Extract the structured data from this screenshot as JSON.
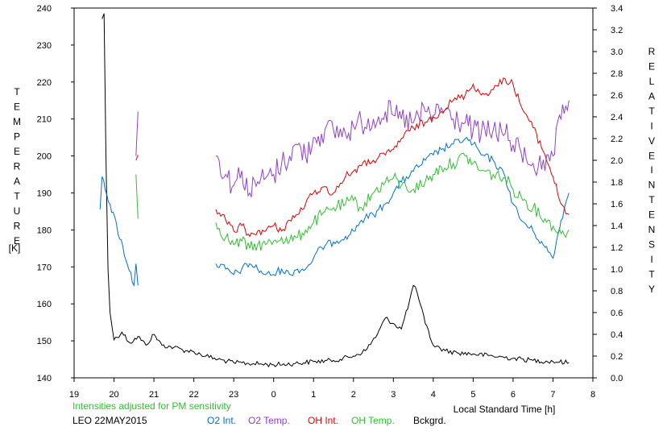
{
  "chart_data": {
    "type": "line",
    "left_axis": {
      "label_letters": [
        "T",
        "E",
        "M",
        "P",
        "E",
        "R",
        "A",
        "T",
        "U",
        "R",
        "E"
      ],
      "unit": "[K]",
      "range": [
        140,
        240
      ],
      "ticks": [
        "140",
        "150",
        "160",
        "170",
        "180",
        "190",
        "200",
        "210",
        "220",
        "230",
        "240"
      ]
    },
    "right_axis": {
      "label_word1": [
        "R",
        "E",
        "L",
        "A",
        "T",
        "I",
        "V",
        "E"
      ],
      "label_word2": [
        "I",
        "N",
        "T",
        "E",
        "N",
        "S",
        "I",
        "T",
        "Y"
      ],
      "range": [
        0.0,
        3.4
      ],
      "ticks": [
        "0.0",
        "0.2",
        "0.4",
        "0.6",
        "0.8",
        "1.0",
        "1.2",
        "1.4",
        "1.6",
        "1.8",
        "2.0",
        "2.2",
        "2.4",
        "2.6",
        "2.8",
        "3.0",
        "3.2",
        "3.4"
      ]
    },
    "x_axis": {
      "label": "Local Standard Time [h]",
      "range_hours_since_19": [
        0,
        13
      ],
      "ticks": [
        "19",
        "20",
        "21",
        "22",
        "23",
        "0",
        "1",
        "2",
        "3",
        "4",
        "5",
        "6",
        "7",
        "8"
      ]
    },
    "note": "Intensities adjusted for PM sensitivity",
    "station_date": "LEO 22MAY2015",
    "grid": false,
    "legend_placement": "bottom",
    "series": [
      {
        "name": "O2 Int.",
        "color": "#0070d0",
        "axis": "right",
        "x": [
          19.65,
          19.7,
          20.5,
          20.55,
          20.6,
          22.55,
          22.8,
          23.0,
          23.2,
          23.4,
          23.6,
          23.8,
          0.0,
          0.2,
          0.4,
          0.6,
          0.8,
          1.0,
          1.2,
          1.5,
          1.8,
          2.0,
          2.2,
          2.5,
          2.8,
          3.0,
          3.2,
          3.5,
          3.8,
          4.0,
          4.2,
          4.5,
          4.8,
          5.0,
          5.2,
          5.5,
          5.8,
          6.0,
          6.2,
          6.5,
          6.8,
          7.0,
          7.2,
          7.4
        ],
        "y": [
          1.55,
          1.85,
          0.85,
          1.05,
          0.85,
          1.05,
          1.0,
          0.95,
          1.0,
          1.05,
          1.0,
          0.95,
          0.95,
          1.0,
          0.95,
          1.0,
          1.0,
          1.1,
          1.2,
          1.25,
          1.3,
          1.35,
          1.45,
          1.5,
          1.6,
          1.7,
          1.8,
          1.9,
          2.0,
          2.05,
          2.1,
          2.15,
          2.2,
          2.15,
          2.05,
          2.0,
          1.85,
          1.6,
          1.45,
          1.35,
          1.2,
          1.1,
          1.45,
          1.7
        ]
      },
      {
        "name": "O2 Temp.",
        "color": "#9040d0",
        "axis": "left",
        "x": [
          20.55,
          20.6,
          22.55,
          22.8,
          23.0,
          23.2,
          23.4,
          23.6,
          23.8,
          0.0,
          0.2,
          0.4,
          0.6,
          0.8,
          1.0,
          1.2,
          1.5,
          1.8,
          2.0,
          2.2,
          2.5,
          2.8,
          3.0,
          3.2,
          3.5,
          3.8,
          4.0,
          4.2,
          4.5,
          4.8,
          5.0,
          5.2,
          5.5,
          5.8,
          6.0,
          6.2,
          6.5,
          6.8,
          7.0,
          7.2,
          7.4
        ],
        "y": [
          200,
          212,
          200,
          195,
          192,
          196,
          190,
          193,
          194,
          195,
          198,
          200,
          203,
          200,
          205,
          206,
          207,
          206,
          208,
          209,
          210,
          212,
          211,
          210,
          209,
          212,
          211,
          213,
          210,
          209,
          207,
          206,
          207,
          206,
          203,
          201,
          198,
          196,
          200,
          210,
          215
        ]
      },
      {
        "name": "OH Int.",
        "color": "#e00000",
        "axis": "right",
        "x": [
          20.55,
          20.6,
          22.55,
          22.8,
          23.0,
          23.2,
          23.4,
          23.6,
          23.8,
          0.0,
          0.2,
          0.4,
          0.6,
          0.8,
          1.0,
          1.2,
          1.5,
          1.8,
          2.0,
          2.2,
          2.5,
          2.8,
          3.0,
          3.2,
          3.5,
          3.8,
          4.0,
          4.2,
          4.5,
          4.8,
          5.0,
          5.2,
          5.5,
          5.8,
          6.0,
          6.2,
          6.5,
          6.8,
          7.0,
          7.2,
          7.4
        ],
        "y": [
          2.0,
          2.05,
          1.55,
          1.45,
          1.35,
          1.4,
          1.3,
          1.35,
          1.35,
          1.4,
          1.35,
          1.45,
          1.5,
          1.6,
          1.7,
          1.75,
          1.7,
          1.85,
          1.9,
          1.95,
          2.0,
          2.05,
          2.1,
          2.2,
          2.3,
          2.35,
          2.4,
          2.45,
          2.55,
          2.6,
          2.7,
          2.6,
          2.65,
          2.75,
          2.7,
          2.5,
          2.3,
          2.05,
          1.85,
          1.6,
          1.5
        ]
      },
      {
        "name": "OH Temp.",
        "color": "#30c030",
        "axis": "left",
        "x": [
          20.55,
          20.6,
          22.55,
          22.8,
          23.0,
          23.2,
          23.4,
          23.6,
          23.8,
          0.0,
          0.2,
          0.4,
          0.6,
          0.8,
          1.0,
          1.2,
          1.5,
          1.8,
          2.0,
          2.2,
          2.5,
          2.8,
          3.0,
          3.2,
          3.5,
          3.8,
          4.0,
          4.2,
          4.5,
          4.8,
          5.0,
          5.2,
          5.5,
          5.8,
          6.0,
          6.2,
          6.5,
          6.8,
          7.0,
          7.2,
          7.4
        ],
        "y": [
          195,
          183,
          182,
          178,
          176,
          177,
          175,
          176,
          176,
          177,
          178,
          177,
          178,
          180,
          182,
          184,
          186,
          187,
          188,
          186,
          190,
          193,
          194,
          192,
          191,
          193,
          195,
          197,
          198,
          200,
          198,
          196,
          195,
          194,
          191,
          189,
          186,
          183,
          181,
          179,
          180
        ]
      },
      {
        "name": "Bckgrd.",
        "color": "#000000",
        "axis": "right",
        "x": [
          19.7,
          19.75,
          19.8,
          19.85,
          19.9,
          20.0,
          20.2,
          20.4,
          20.6,
          20.8,
          21.0,
          21.2,
          21.5,
          21.8,
          22.0,
          22.3,
          22.6,
          23.0,
          23.5,
          0.0,
          0.5,
          1.0,
          1.5,
          2.0,
          2.3,
          2.6,
          2.8,
          3.0,
          3.2,
          3.4,
          3.5,
          3.6,
          3.8,
          4.0,
          4.3,
          4.6,
          5.0,
          5.5,
          6.0,
          6.5,
          7.0,
          7.4
        ],
        "y": [
          3.3,
          3.35,
          2.0,
          1.0,
          0.6,
          0.35,
          0.42,
          0.32,
          0.38,
          0.3,
          0.4,
          0.3,
          0.28,
          0.25,
          0.24,
          0.2,
          0.17,
          0.14,
          0.13,
          0.12,
          0.13,
          0.15,
          0.16,
          0.2,
          0.25,
          0.4,
          0.55,
          0.5,
          0.45,
          0.7,
          0.85,
          0.78,
          0.5,
          0.3,
          0.25,
          0.23,
          0.22,
          0.2,
          0.18,
          0.16,
          0.15,
          0.14
        ]
      }
    ]
  }
}
